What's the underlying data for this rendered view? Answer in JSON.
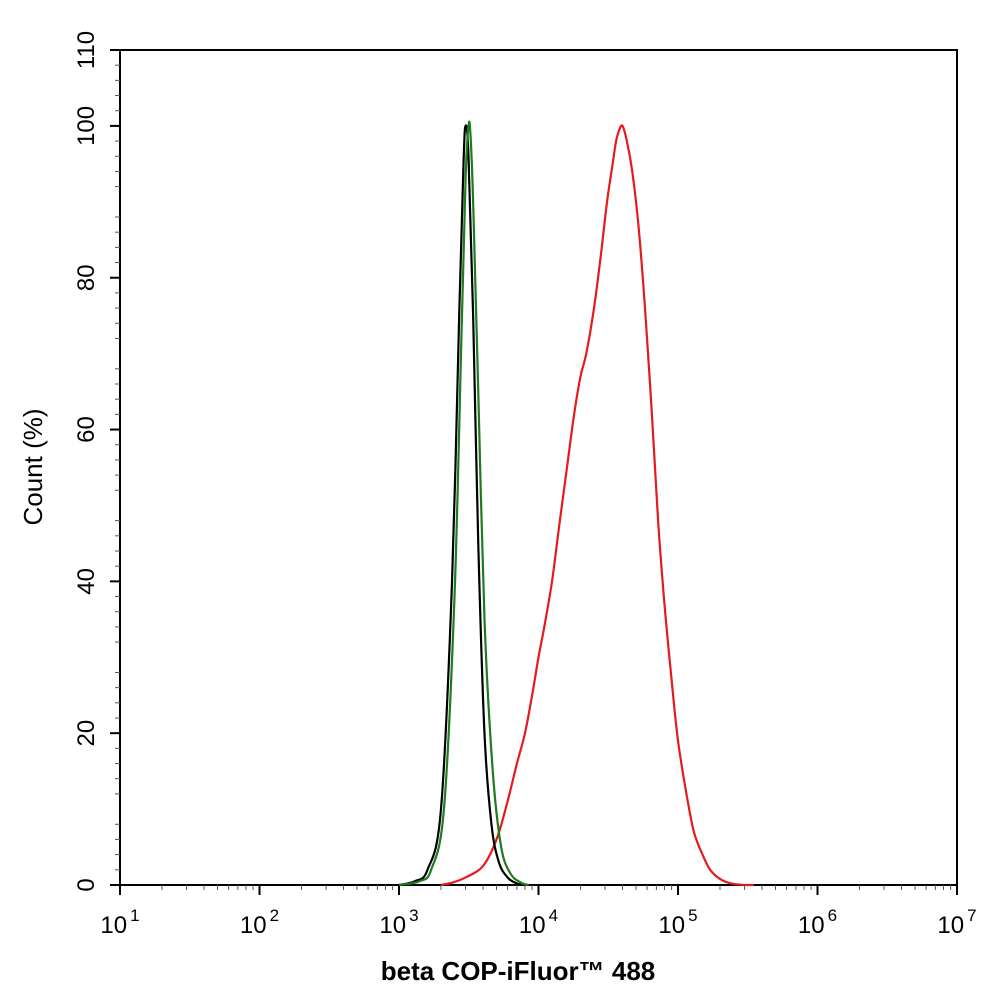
{
  "chart_data": {
    "type": "line",
    "xlabel": "beta COP-iFluor™ 488",
    "ylabel": "Count  (%)",
    "x_scale": "log",
    "xlim": [
      10,
      10000000
    ],
    "ylim": [
      0,
      110
    ],
    "x_ticks": [
      {
        "base": "10",
        "exp": "1",
        "value": 10
      },
      {
        "base": "10",
        "exp": "2",
        "value": 100
      },
      {
        "base": "10",
        "exp": "3",
        "value": 1000
      },
      {
        "base": "10",
        "exp": "4",
        "value": 10000
      },
      {
        "base": "10",
        "exp": "5",
        "value": 100000
      },
      {
        "base": "10",
        "exp": "6",
        "value": 1000000
      },
      {
        "base": "10",
        "exp": "7",
        "value": 10000000
      }
    ],
    "y_ticks": [
      "0",
      "20",
      "40",
      "60",
      "80",
      "100",
      "110"
    ],
    "grid": false,
    "legend": "none",
    "series": [
      {
        "color": "#000000",
        "x": [
          1000,
          1300,
          1600,
          2000,
          2400,
          2700,
          2900,
          3000,
          3150,
          3400,
          3700,
          4100,
          4600,
          5200,
          6000,
          7000,
          8000
        ],
        "y": [
          0,
          0.5,
          2,
          10,
          40,
          75,
          95,
          100,
          96,
          75,
          45,
          20,
          8,
          3,
          1,
          0.2,
          0
        ]
      },
      {
        "color": "#1e7b1e",
        "x": [
          1000,
          1400,
          1700,
          2100,
          2500,
          2800,
          3000,
          3150,
          3250,
          3400,
          3700,
          4100,
          4700,
          5400,
          6300,
          7500,
          8500
        ],
        "y": [
          0,
          0.5,
          2,
          10,
          38,
          72,
          93,
          100,
          99,
          90,
          65,
          35,
          15,
          5,
          1.5,
          0.3,
          0
        ]
      },
      {
        "color": "#e41a1c",
        "x": [
          2000,
          2400,
          3000,
          4000,
          5000,
          6000,
          7000,
          8000,
          9000,
          10000,
          11000,
          12500,
          14000,
          16000,
          18000,
          20000,
          22000,
          25000,
          28000,
          31000,
          34000,
          36000,
          38000,
          40000,
          43000,
          47000,
          52000,
          58000,
          65000,
          72000,
          80000,
          90000,
          100000,
          115000,
          130000,
          150000,
          170000,
          200000,
          240000,
          300000,
          350000
        ],
        "y": [
          0,
          0.3,
          1,
          2.5,
          6,
          11,
          16,
          20,
          25,
          30,
          34,
          40,
          47,
          55,
          62,
          67,
          70,
          76,
          83,
          90,
          95,
          98,
          99.5,
          100,
          98,
          94,
          87,
          76,
          62,
          48,
          37,
          27,
          19,
          12,
          7,
          4,
          2,
          0.8,
          0.2,
          0,
          0
        ]
      }
    ]
  }
}
